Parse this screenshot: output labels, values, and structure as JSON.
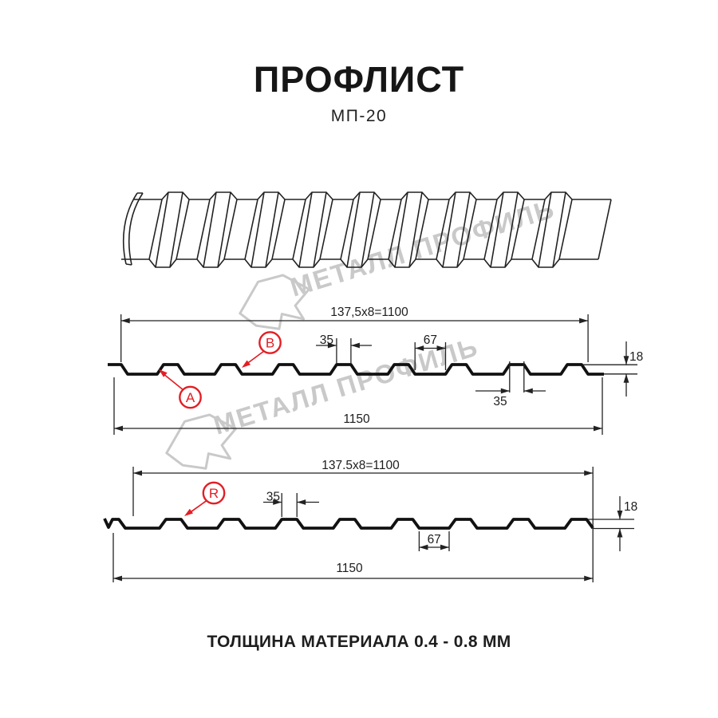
{
  "header": {
    "title": "ПРОФЛИСТ",
    "subtitle": "МП-20"
  },
  "footer": {
    "note": "ТОЛЩИНА МАТЕРИАЛА 0.4 - 0.8 ММ"
  },
  "watermark": {
    "brand_text": "МЕТАЛЛ ПРОФИЛЬ"
  },
  "colors": {
    "accent_red": "#e31e24",
    "line_black": "#222222",
    "watermark_gray": "#c9c9c9"
  },
  "section_top": {
    "dim_pitch": "137,5x8=1100",
    "dim_crest_width_top": "35",
    "dim_valley_width": "67",
    "dim_height": "18",
    "dim_crest_width_bottom": "35",
    "dim_overall_width": "1150",
    "label_valley": "A",
    "label_crest": "B"
  },
  "section_bottom": {
    "dim_pitch": "137.5x8=1100",
    "dim_crest_width": "35",
    "dim_valley_width": "67",
    "dim_height": "18",
    "dim_overall_width": "1150",
    "label_profile": "R"
  }
}
